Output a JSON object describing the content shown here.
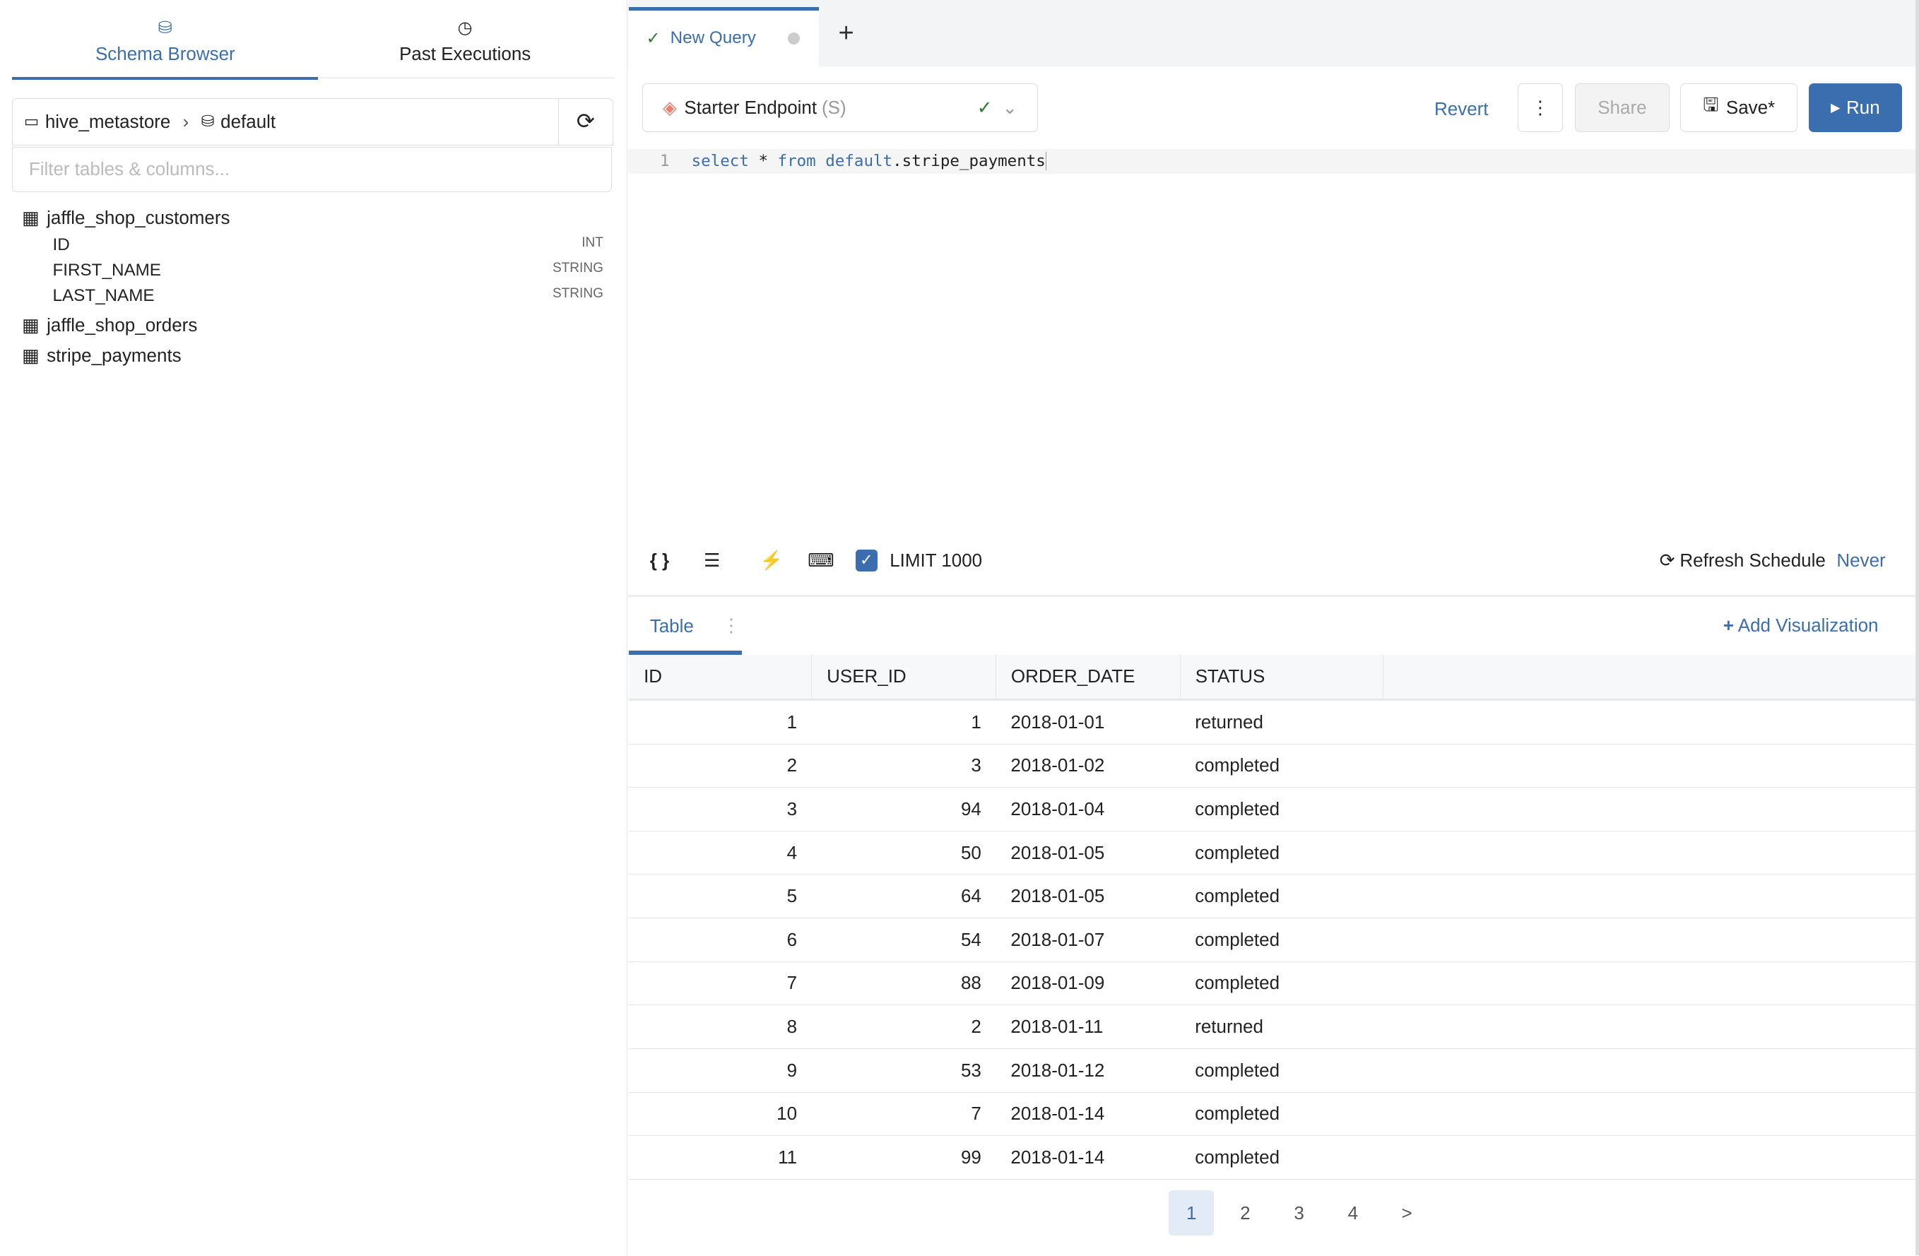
{
  "sidebar": {
    "tabs": [
      {
        "label": "Schema Browser",
        "icon": "database-icon",
        "active": true
      },
      {
        "label": "Past Executions",
        "icon": "history-icon",
        "active": false
      }
    ],
    "catalog": "hive_metastore",
    "schema": "default",
    "filter_placeholder": "Filter tables & columns...",
    "tables": [
      {
        "name": "jaffle_shop_customers",
        "columns": [
          {
            "name": "ID",
            "type": "INT"
          },
          {
            "name": "FIRST_NAME",
            "type": "STRING"
          },
          {
            "name": "LAST_NAME",
            "type": "STRING"
          }
        ]
      },
      {
        "name": "jaffle_shop_orders"
      },
      {
        "name": "stripe_payments"
      }
    ]
  },
  "query_tab": {
    "label": "New Query",
    "add": "+"
  },
  "toolbar": {
    "endpoint": "Starter Endpoint",
    "endpoint_size": "(S)",
    "revert": "Revert",
    "more": "⋮",
    "share": "Share",
    "save": "Save*",
    "run": "Run"
  },
  "editor": {
    "line_number": "1",
    "kw1": "select",
    "star": " * ",
    "kw2": "from",
    "schema": "default",
    "rest": ".stripe_payments"
  },
  "bottom_toolbar": {
    "limit_label": "LIMIT 1000",
    "limit_checked": true,
    "refresh_label": "Refresh Schedule",
    "refresh_value": "Never"
  },
  "results": {
    "tab": "Table",
    "add_visualization": "Add Visualization",
    "columns": [
      "ID",
      "USER_ID",
      "ORDER_DATE",
      "STATUS"
    ],
    "rows": [
      [
        "1",
        "1",
        "2018-01-01",
        "returned"
      ],
      [
        "2",
        "3",
        "2018-01-02",
        "completed"
      ],
      [
        "3",
        "94",
        "2018-01-04",
        "completed"
      ],
      [
        "4",
        "50",
        "2018-01-05",
        "completed"
      ],
      [
        "5",
        "64",
        "2018-01-05",
        "completed"
      ],
      [
        "6",
        "54",
        "2018-01-07",
        "completed"
      ],
      [
        "7",
        "88",
        "2018-01-09",
        "completed"
      ],
      [
        "8",
        "2",
        "2018-01-11",
        "returned"
      ],
      [
        "9",
        "53",
        "2018-01-12",
        "completed"
      ],
      [
        "10",
        "7",
        "2018-01-14",
        "completed"
      ],
      [
        "11",
        "99",
        "2018-01-14",
        "completed"
      ]
    ]
  },
  "pagination": {
    "pages": [
      "1",
      "2",
      "3",
      "4"
    ],
    "current": "1",
    "next": ">"
  },
  "colors": {
    "accent": "#3a6eae",
    "success": "#2e7d32"
  }
}
